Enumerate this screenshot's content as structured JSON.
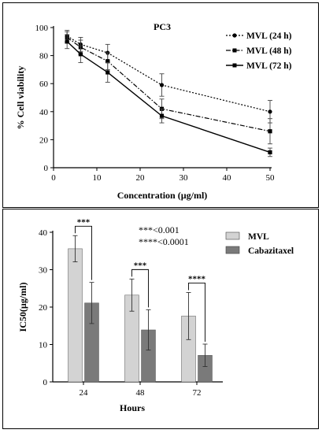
{
  "colors": {
    "line": "#000000",
    "bar_mvl": "#d3d3d3",
    "bar_cabazitaxel": "#7a7a7a",
    "error_bar": "#333333",
    "frame": "#000000"
  },
  "chart_data": [
    {
      "type": "line",
      "title": "PC3",
      "xlabel": "Concentration (µg/ml)",
      "ylabel": "% Cell viability",
      "xlim": [
        0,
        50
      ],
      "ylim": [
        0,
        100
      ],
      "x_ticks": [
        "0",
        "10",
        "20",
        "30",
        "40",
        "50"
      ],
      "y_ticks": [
        "0",
        "20",
        "40",
        "60",
        "80",
        "100"
      ],
      "legend_position": "top-right",
      "x": [
        3.125,
        6.25,
        12.5,
        25,
        50
      ],
      "series": [
        {
          "name": "MVL (24 h)",
          "values": [
            94,
            88,
            82,
            59,
            40
          ],
          "errors": [
            4,
            5,
            6,
            8,
            8
          ],
          "line_style": "dotted",
          "marker": "circle"
        },
        {
          "name": "MVL (48 h)",
          "values": [
            93,
            86,
            76,
            42,
            26
          ],
          "errors": [
            4,
            5,
            6,
            7,
            9
          ],
          "line_style": "dashdot",
          "marker": "square"
        },
        {
          "name": "MVL (72 h)",
          "values": [
            90,
            81,
            68,
            37,
            11
          ],
          "errors": [
            5,
            6,
            7,
            5,
            3
          ],
          "line_style": "solid",
          "marker": "square"
        }
      ],
      "grid": false
    },
    {
      "type": "bar",
      "title": "",
      "xlabel": "Hours",
      "ylabel": "IC50(µg/ml)",
      "ylim": [
        0,
        40
      ],
      "y_ticks": [
        "0",
        "10",
        "20",
        "30",
        "40"
      ],
      "categories": [
        "24",
        "48",
        "72"
      ],
      "legend_position": "top-right",
      "series": [
        {
          "name": "MVL",
          "values": [
            35.6,
            23.2,
            17.6
          ],
          "errors": [
            3.5,
            4.3,
            6.3
          ]
        },
        {
          "name": "Cabazitaxel",
          "values": [
            21.1,
            13.9,
            7.1
          ],
          "errors": [
            5.5,
            5.4,
            3.0
          ]
        }
      ],
      "significance": [
        {
          "category": "24",
          "label": "***"
        },
        {
          "category": "48",
          "label": "***"
        },
        {
          "category": "72",
          "label": "****"
        }
      ],
      "annotations": [
        "***<0.001",
        "****<0.0001"
      ],
      "grid": false
    }
  ]
}
